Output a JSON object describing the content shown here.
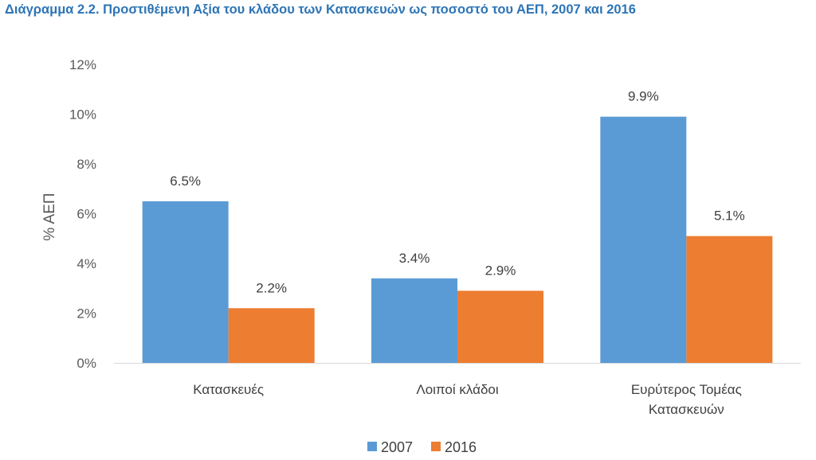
{
  "chart_data": {
    "type": "bar",
    "title": "Διάγραμμα 2.2. Προστιθέμενη Αξία του κλάδου των Κατασκευών ως ποσοστό του ΑΕΠ, 2007 και 2016",
    "ylabel": "% ΑΕΠ",
    "xlabel": "",
    "ylim": [
      0,
      12
    ],
    "yticks": [
      "0%",
      "2%",
      "4%",
      "6%",
      "8%",
      "10%",
      "12%"
    ],
    "categories": [
      [
        "Κατασκευές"
      ],
      [
        "Λοιποί κλάδοι"
      ],
      [
        "Ευρύτερος Τομέας",
        "Κατασκευών"
      ]
    ],
    "series": [
      {
        "name": "2007",
        "color": "#5b9bd5",
        "values": [
          6.5,
          3.4,
          9.9
        ],
        "labels": [
          "6.5%",
          "3.4%",
          "9.9%"
        ]
      },
      {
        "name": "2016",
        "color": "#ed7d31",
        "values": [
          2.2,
          2.9,
          5.1
        ],
        "labels": [
          "2.2%",
          "2.9%",
          "5.1%"
        ]
      }
    ],
    "grid": false,
    "legend": "bottom"
  }
}
